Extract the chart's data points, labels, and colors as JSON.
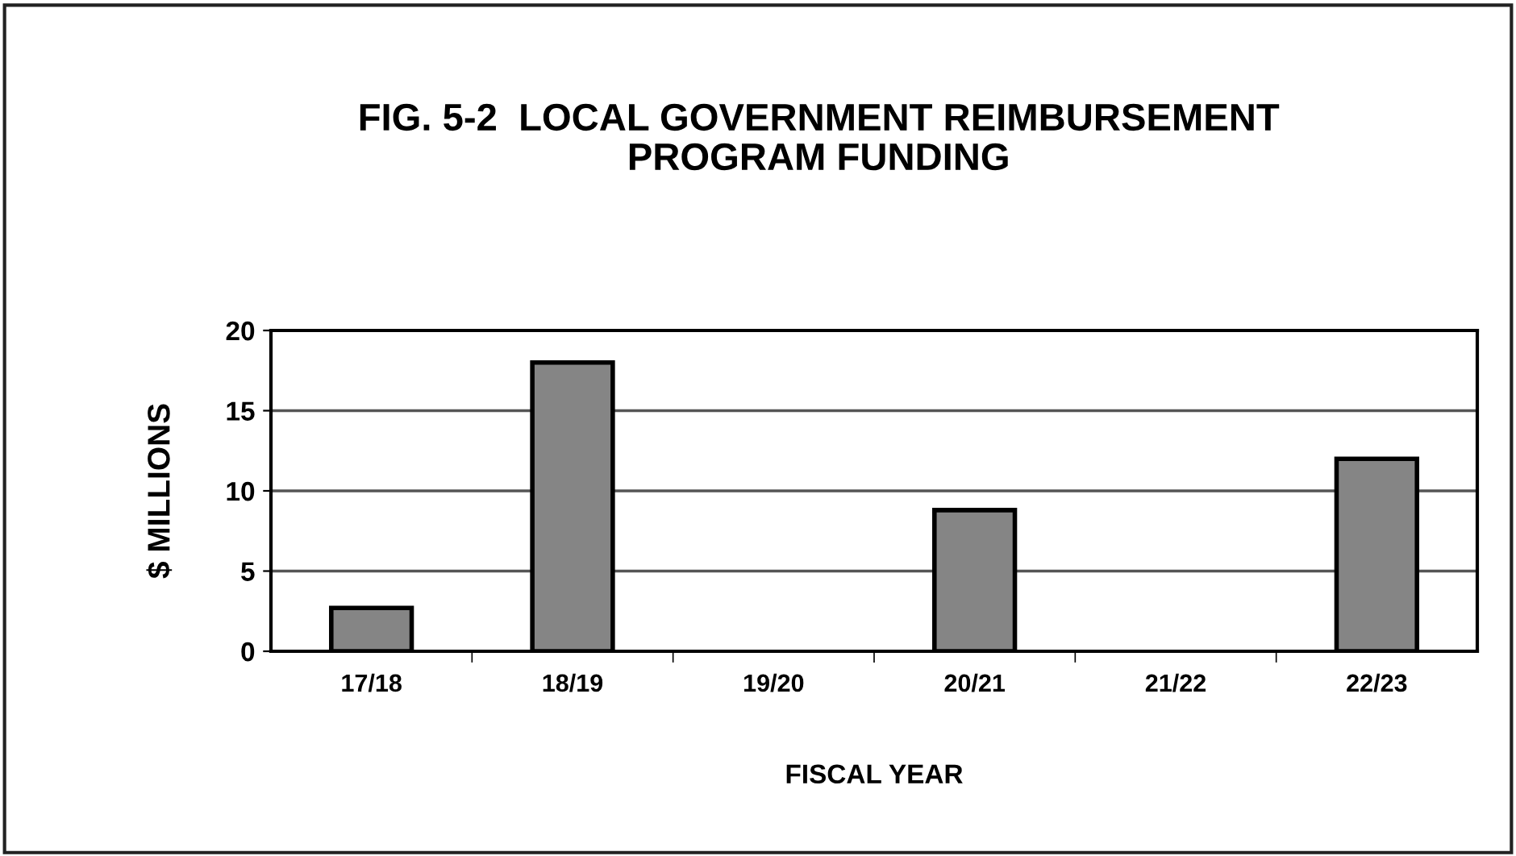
{
  "chart_data": {
    "type": "bar",
    "title": "FIG. 5-2  LOCAL GOVERNMENT REIMBURSEMENT\nPROGRAM FUNDING",
    "xlabel": "FISCAL YEAR",
    "ylabel": "$ MILLIONS",
    "categories": [
      "17/18",
      "18/19",
      "19/20",
      "20/21",
      "21/22",
      "22/23"
    ],
    "values": [
      2.7,
      18.0,
      0,
      8.8,
      0,
      12.0
    ],
    "color": "#858585",
    "ylim": [
      0,
      20
    ],
    "yticks": [
      0,
      5,
      10,
      15,
      20
    ],
    "grid": "y",
    "legend": false
  }
}
